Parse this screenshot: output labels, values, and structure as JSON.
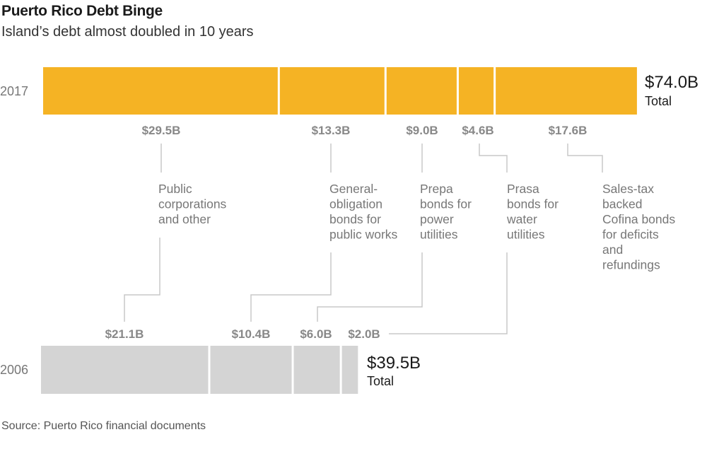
{
  "title": "Puerto Rico Debt Binge",
  "subtitle": "Island’s debt almost doubled in 10 years",
  "source": "Source: Puerto Rico financial documents",
  "colors": {
    "bar_2017": "#f5b324",
    "bar_2006": "#d4d4d4",
    "connector": "#c8c8c8"
  },
  "chart_data": {
    "type": "bar",
    "orientation": "horizontal-stacked",
    "categories": [
      "2017",
      "2006"
    ],
    "segments": [
      {
        "name": "Public corporations and other",
        "label_lines": [
          "Public",
          "corporations",
          "and other"
        ],
        "values": [
          29.5,
          21.1
        ],
        "value_labels": [
          "$29.5B",
          "$21.1B"
        ]
      },
      {
        "name": "General-obligation bonds for public works",
        "label_lines": [
          "General-",
          "obligation",
          "bonds for",
          "public works"
        ],
        "values": [
          13.3,
          10.4
        ],
        "value_labels": [
          "$13.3B",
          "$10.4B"
        ]
      },
      {
        "name": "Prepa bonds for power utilities",
        "label_lines": [
          "Prepa",
          "bonds for",
          "power",
          "utilities"
        ],
        "values": [
          9.0,
          6.0
        ],
        "value_labels": [
          "$9.0B",
          "$6.0B"
        ]
      },
      {
        "name": "Prasa bonds for water utilities",
        "label_lines": [
          "Prasa",
          "bonds for",
          "water",
          "utilities"
        ],
        "values": [
          4.6,
          2.0
        ],
        "value_labels": [
          "$4.6B",
          "$2.0B"
        ]
      },
      {
        "name": "Sales-tax backed Cofina bonds for deficits and refundings",
        "label_lines": [
          "Sales-tax",
          "backed",
          "Cofina bonds",
          "for deficits",
          "and",
          "refundings"
        ],
        "values": [
          17.6,
          0
        ],
        "value_labels": [
          "$17.6B",
          ""
        ]
      }
    ],
    "totals": [
      {
        "year": "2017",
        "value": 74.0,
        "value_label": "$74.0B",
        "label": "Total"
      },
      {
        "year": "2006",
        "value": 39.5,
        "value_label": "$39.5B",
        "label": "Total"
      }
    ],
    "unit": "billions USD",
    "grid": false,
    "legend": "none"
  }
}
